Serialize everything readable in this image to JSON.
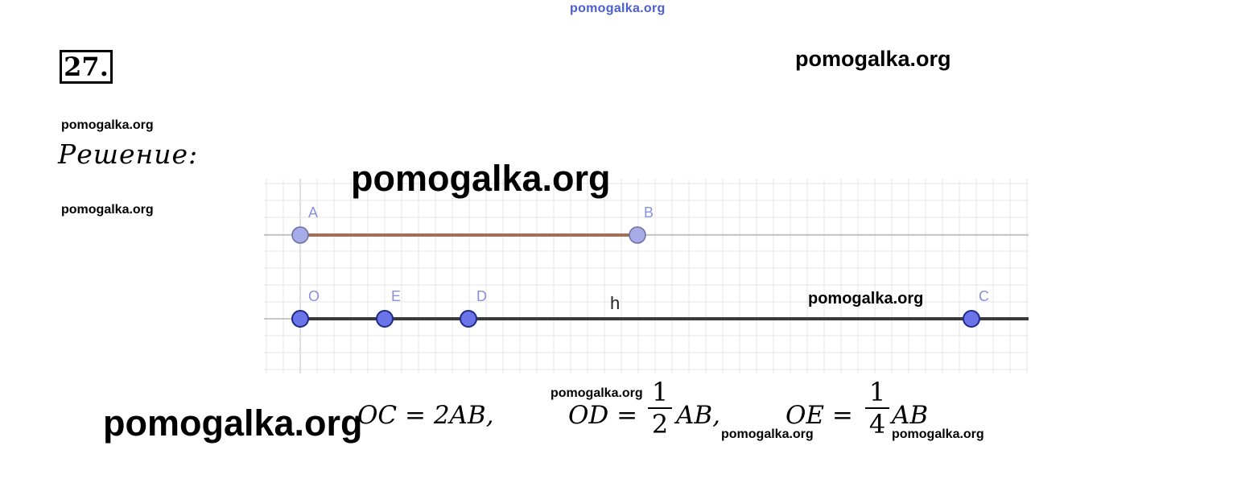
{
  "watermark_top": "pomogalka.org",
  "watermarks": {
    "header_right": "pomogalka.org",
    "left_1": "pomogalka.org",
    "left_2": "pomogalka.org",
    "graph_top": "pomogalka.org",
    "graph_right": "pomogalka.org",
    "formula_middle": "pomogalka.org",
    "bottom_left": "pomogalka.org",
    "formula_right_1": "pomogalka.org",
    "formula_right_2": "pomogalka.org"
  },
  "task_number": "27.",
  "solution_label": "Решение:",
  "diagram": {
    "points_ab": [
      "A",
      "B"
    ],
    "points_line": [
      "O",
      "E",
      "D",
      "C"
    ],
    "line_label": "h",
    "segment_color": "#a0705a",
    "point_color": "#6b74e8"
  },
  "formulas": {
    "oc": "OC = 2AB,",
    "od_left": "OD =",
    "od_num": "1",
    "od_den": "2",
    "od_right": "AB,",
    "oe_left": "OE =",
    "oe_num": "1",
    "oe_den": "4",
    "oe_right": "AB"
  }
}
